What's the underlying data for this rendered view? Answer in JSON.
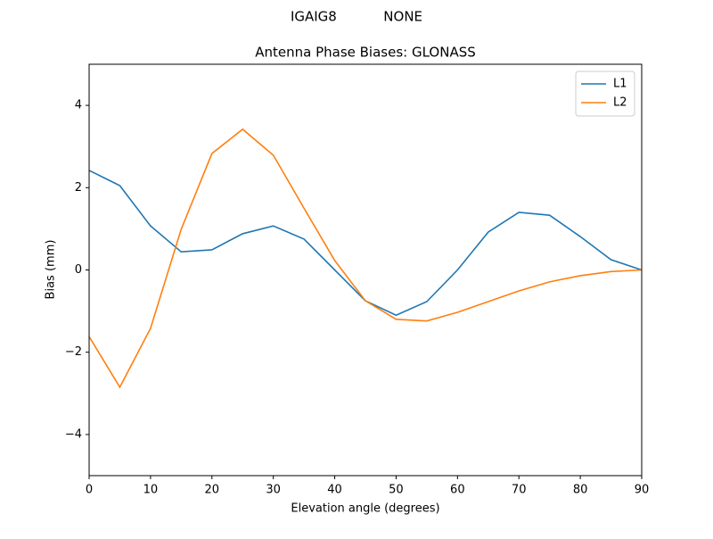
{
  "chart_data": {
    "type": "line",
    "suptitle": "IGAIG8           NONE",
    "title": "Antenna Phase Biases: GLONASS",
    "xlabel": "Elevation angle (degrees)",
    "ylabel": "Bias (mm)",
    "x": [
      0,
      5,
      10,
      15,
      20,
      25,
      30,
      35,
      40,
      45,
      50,
      55,
      60,
      65,
      70,
      75,
      80,
      85,
      90
    ],
    "series": [
      {
        "name": "L1",
        "color": "#1f77b4",
        "values": [
          2.42,
          2.05,
          1.07,
          0.44,
          0.49,
          0.88,
          1.07,
          0.75,
          0.0,
          -0.75,
          -1.1,
          -0.77,
          0.0,
          0.92,
          1.4,
          1.33,
          0.81,
          0.25,
          0.0
        ]
      },
      {
        "name": "L2",
        "color": "#ff7f0e",
        "values": [
          -1.62,
          -2.85,
          -1.42,
          0.99,
          2.83,
          3.42,
          2.79,
          1.5,
          0.23,
          -0.75,
          -1.2,
          -1.24,
          -1.03,
          -0.77,
          -0.51,
          -0.29,
          -0.14,
          -0.04,
          0.0
        ]
      }
    ],
    "xlim": [
      0,
      90
    ],
    "xticks": [
      0,
      10,
      20,
      30,
      40,
      50,
      60,
      70,
      80,
      90
    ],
    "ylim": [
      -5,
      5
    ],
    "yticks": [
      {
        "value": -4,
        "label": "−4"
      },
      {
        "value": -2,
        "label": "−2"
      },
      0,
      2,
      4
    ],
    "legend": "upper right"
  }
}
